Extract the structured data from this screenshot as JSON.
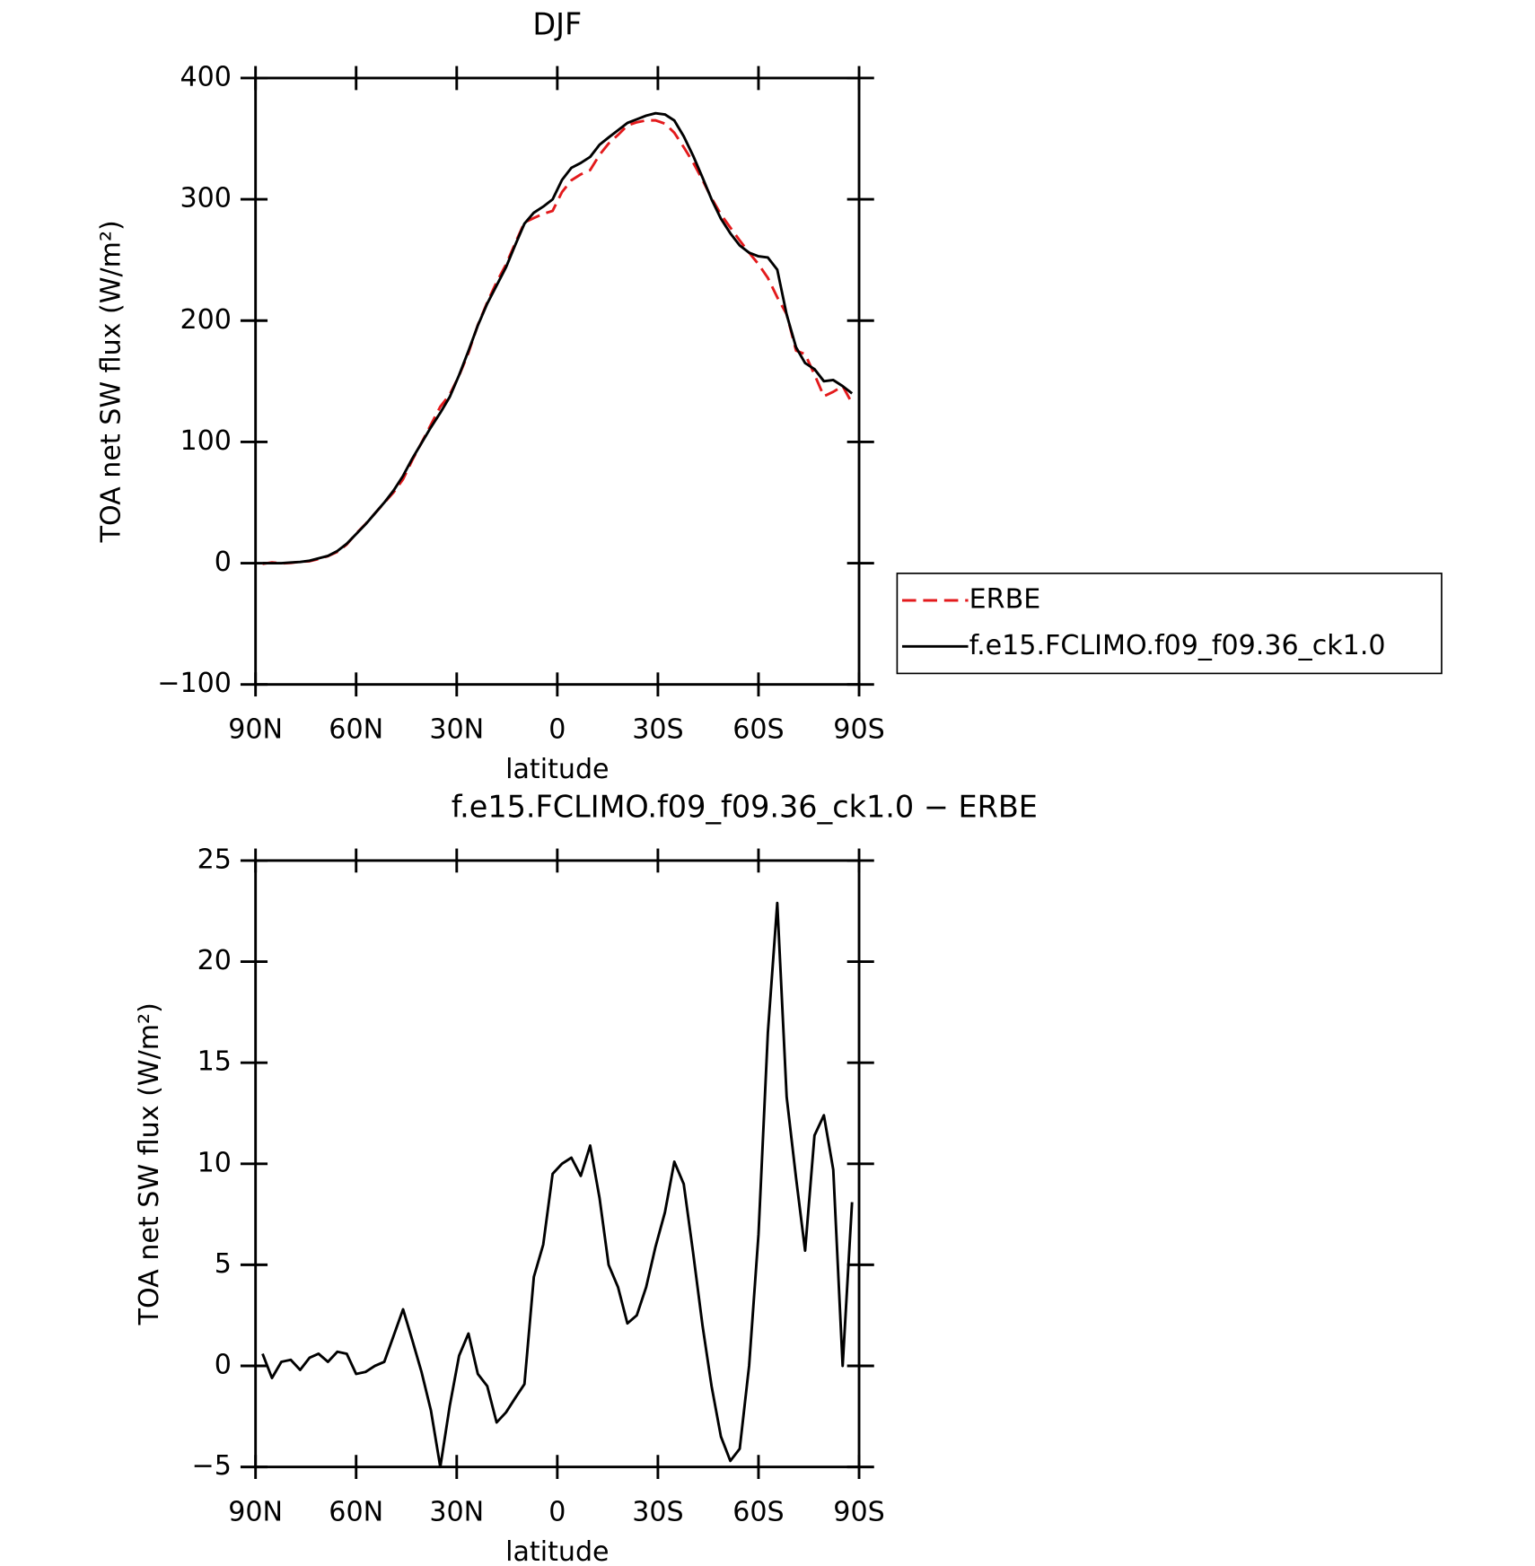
{
  "chart_data": [
    {
      "type": "line",
      "title": "DJF",
      "xlabel": "latitude",
      "ylabel": "TOA net SW flux (W/m²)",
      "x": [
        87.9,
        85.1,
        82.3,
        79.5,
        76.7,
        73.9,
        71.2,
        68.4,
        65.6,
        62.8,
        60.0,
        57.2,
        54.4,
        51.6,
        48.8,
        46.0,
        43.3,
        40.5,
        37.7,
        34.9,
        32.1,
        29.3,
        26.5,
        23.7,
        20.9,
        18.1,
        15.3,
        12.6,
        9.8,
        7.0,
        4.2,
        1.4,
        -1.4,
        -4.2,
        -7.0,
        -9.8,
        -12.6,
        -15.3,
        -18.1,
        -20.9,
        -23.7,
        -26.5,
        -29.3,
        -32.1,
        -34.9,
        -37.7,
        -40.5,
        -43.3,
        -46.0,
        -48.8,
        -51.6,
        -54.4,
        -57.2,
        -60.0,
        -62.8,
        -65.6,
        -68.4,
        -71.2,
        -73.9,
        -76.7,
        -79.5,
        -82.3,
        -85.1,
        -87.9
      ],
      "series": [
        {
          "name": "ERBE",
          "color": "#e31a1c",
          "style": "dashed",
          "values": [
            -0.6,
            0.6,
            -0.2,
            0.2,
            1.2,
            1.6,
            3.4,
            5.8,
            9.3,
            15.4,
            24.4,
            32.3,
            41,
            49.8,
            58.5,
            69.2,
            84.7,
            99.3,
            114.2,
            129,
            139,
            154.5,
            173.4,
            196.4,
            215,
            231.8,
            246.3,
            263.6,
            280.9,
            284.6,
            288,
            290.5,
            306,
            315.7,
            320.6,
            324.1,
            336.7,
            346,
            353.1,
            360.9,
            363.5,
            365.1,
            365.1,
            362.4,
            354.9,
            343,
            330.4,
            316,
            301,
            287.5,
            276.7,
            266.1,
            256,
            246.5,
            235.2,
            219.2,
            205.2,
            175.3,
            172.3,
            155.5,
            137.6,
            141.3,
            146,
            131.9
          ]
        },
        {
          "name": "f.e15.FCLIMO.f09_f09.36_ck1.0",
          "color": "#000000",
          "style": "solid",
          "values": [
            0,
            0,
            0,
            0.5,
            1,
            2,
            4,
            6,
            10,
            16,
            24,
            32,
            41,
            50,
            60,
            72,
            86,
            99,
            112,
            124,
            137,
            155,
            175,
            196,
            214,
            229,
            244,
            262,
            280,
            289,
            294,
            300,
            316,
            326,
            330,
            335,
            345,
            351,
            357,
            363,
            366,
            369,
            371,
            370,
            365,
            352,
            336,
            318,
            300,
            284,
            272,
            262,
            256,
            253,
            252,
            242,
            205,
            178,
            165,
            160,
            150,
            151,
            146,
            140
          ]
        }
      ],
      "xlim": [
        90,
        -90
      ],
      "xticks": [
        {
          "value": 90,
          "label": "90N"
        },
        {
          "value": 60,
          "label": "60N"
        },
        {
          "value": 30,
          "label": "30N"
        },
        0,
        {
          "value": -30,
          "label": "30S"
        },
        {
          "value": -60,
          "label": "60S"
        },
        {
          "value": -90,
          "label": "90S"
        }
      ],
      "ylim": [
        -100,
        400
      ],
      "yticks": [
        {
          "value": -100,
          "label": "−100"
        },
        0,
        100,
        200,
        300,
        400
      ],
      "legend": "right"
    },
    {
      "type": "line",
      "title": "f.e15.FCLIMO.f09_f09.36_ck1.0 − ERBE",
      "xlabel": "latitude",
      "ylabel": "TOA net SW flux (W/m²)",
      "x": [
        87.9,
        85.1,
        82.3,
        79.5,
        76.7,
        73.9,
        71.2,
        68.4,
        65.6,
        62.8,
        60.0,
        57.2,
        54.4,
        51.6,
        48.8,
        46.0,
        43.3,
        40.5,
        37.7,
        34.9,
        32.1,
        29.3,
        26.5,
        23.7,
        20.9,
        18.1,
        15.3,
        12.6,
        9.8,
        7.0,
        4.2,
        1.4,
        -1.4,
        -4.2,
        -7.0,
        -9.8,
        -12.6,
        -15.3,
        -18.1,
        -20.9,
        -23.7,
        -26.5,
        -29.3,
        -32.1,
        -34.9,
        -37.7,
        -40.5,
        -43.3,
        -46.0,
        -48.8,
        -51.6,
        -54.4,
        -57.2,
        -60.0,
        -62.8,
        -65.6,
        -68.4,
        -71.2,
        -73.9,
        -76.7,
        -79.5,
        -82.3,
        -85.1,
        -87.9
      ],
      "values": [
        0.6,
        -0.6,
        0.2,
        0.3,
        -0.2,
        0.4,
        0.6,
        0.2,
        0.7,
        0.6,
        -0.4,
        -0.3,
        0.0,
        0.2,
        1.5,
        2.8,
        1.3,
        -0.3,
        -2.2,
        -5.0,
        -2.0,
        0.5,
        1.6,
        -0.4,
        -1.0,
        -2.8,
        -2.3,
        -1.6,
        -0.9,
        4.4,
        6.0,
        9.5,
        10.0,
        10.3,
        9.4,
        10.9,
        8.3,
        5.0,
        3.9,
        2.1,
        2.5,
        3.9,
        5.9,
        7.6,
        10.1,
        9.0,
        5.6,
        2.0,
        -1.0,
        -3.5,
        -4.7,
        -4.1,
        0.0,
        6.5,
        16.5,
        22.9,
        13.3,
        9.3,
        5.7,
        11.4,
        12.4,
        9.7,
        0.0,
        8.1
      ],
      "color": "#000000",
      "xlim": [
        90,
        -90
      ],
      "xticks": [
        {
          "value": 90,
          "label": "90N"
        },
        {
          "value": 60,
          "label": "60N"
        },
        {
          "value": 30,
          "label": "30N"
        },
        0,
        {
          "value": -30,
          "label": "30S"
        },
        {
          "value": -60,
          "label": "60S"
        },
        {
          "value": -90,
          "label": "90S"
        }
      ],
      "ylim": [
        -5,
        25
      ],
      "yticks": [
        {
          "value": -5,
          "label": "−5"
        },
        0,
        5,
        10,
        15,
        20,
        25
      ]
    }
  ]
}
